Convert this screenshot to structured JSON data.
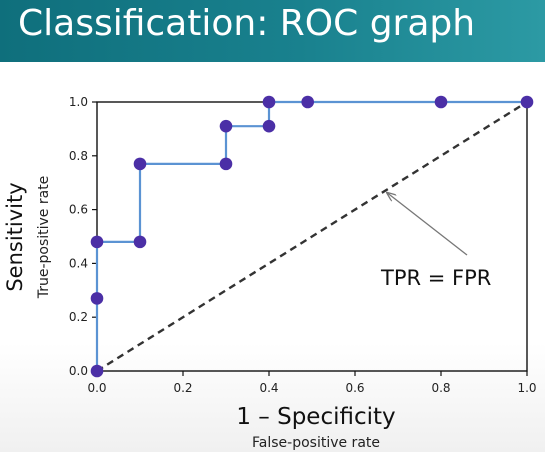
{
  "slide": {
    "title": "Classification: ROC graph"
  },
  "colors": {
    "header": "#147a86",
    "line": "#5b93d3",
    "marker": "#4b2fa6",
    "diagonal": "#333333"
  },
  "chart_data": {
    "type": "line",
    "title": "",
    "xlabel": "1 – Specificity",
    "xlabel_sub": "False-positive rate",
    "ylabel": "Sensitivity",
    "ylabel_sub": "True-positive rate",
    "xlim": [
      0,
      1
    ],
    "ylim": [
      0,
      1
    ],
    "x_ticks": [
      0.0,
      0.2,
      0.4,
      0.6,
      0.8,
      1.0
    ],
    "x_tick_labels": [
      "0.0",
      "0.2",
      "0.4",
      "0.6",
      "0.8",
      "1.0"
    ],
    "y_ticks": [
      0.0,
      0.2,
      0.4,
      0.6,
      0.8,
      1.0
    ],
    "y_tick_labels": [
      "0.0",
      "0.2",
      "0.4",
      "0.6",
      "0.8",
      "1.0"
    ],
    "grid": false,
    "series": [
      {
        "style": "step",
        "line": [
          [
            0.0,
            0.0
          ],
          [
            0.0,
            0.27
          ],
          [
            0.0,
            0.48
          ],
          [
            0.1,
            0.48
          ],
          [
            0.1,
            0.77
          ],
          [
            0.3,
            0.77
          ],
          [
            0.3,
            0.91
          ],
          [
            0.4,
            0.91
          ],
          [
            0.4,
            1.0
          ],
          [
            0.49,
            1.0
          ],
          [
            0.8,
            1.0
          ],
          [
            1.0,
            1.0
          ]
        ],
        "points": [
          [
            0.0,
            0.0
          ],
          [
            0.0,
            0.27
          ],
          [
            0.0,
            0.48
          ],
          [
            0.1,
            0.48
          ],
          [
            0.1,
            0.77
          ],
          [
            0.3,
            0.77
          ],
          [
            0.3,
            0.91
          ],
          [
            0.4,
            0.91
          ],
          [
            0.4,
            1.0
          ],
          [
            0.49,
            1.0
          ],
          [
            0.8,
            1.0
          ],
          [
            1.0,
            1.0
          ]
        ]
      },
      {
        "style": "dashed",
        "x": [
          0,
          1
        ],
        "y": [
          0,
          1
        ]
      }
    ],
    "annotations": [
      {
        "text": "TPR = FPR",
        "points_to": [
          0.67,
          0.67
        ]
      }
    ]
  }
}
